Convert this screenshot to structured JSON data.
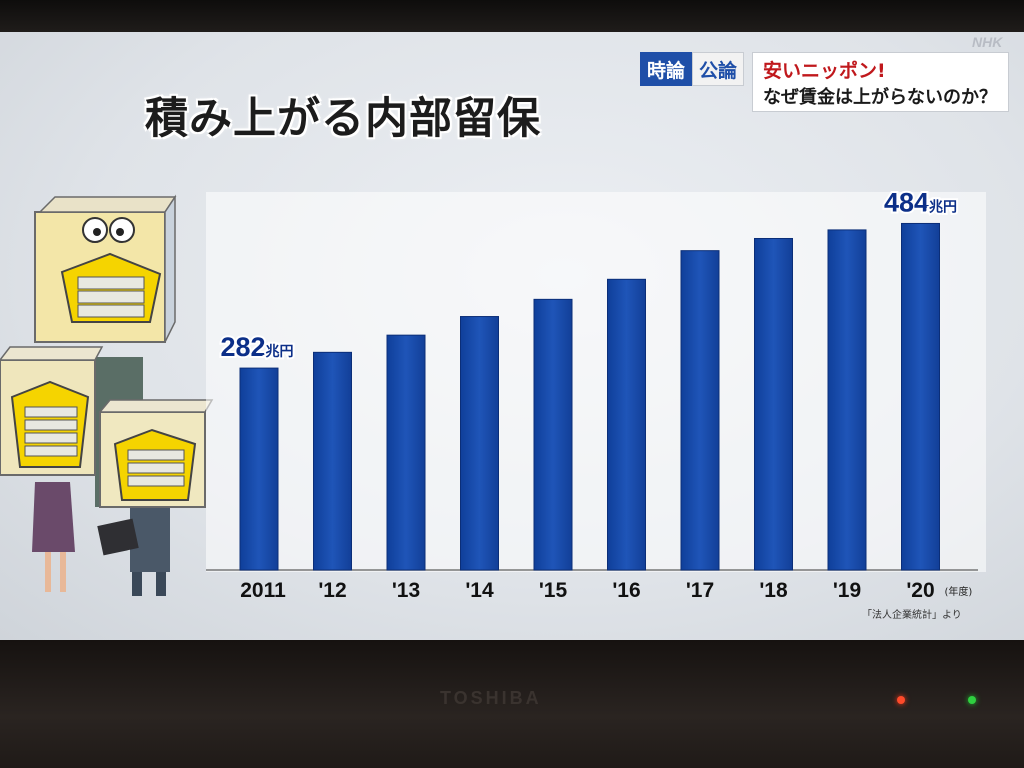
{
  "title": "積み上がる内部留保",
  "program": {
    "badge_left": "時論",
    "badge_right": "公論"
  },
  "topic": {
    "line1": "安いニッポン!",
    "line2": "なぜ賃金は上がらないのか？"
  },
  "broadcaster": "NHK",
  "source": "「法人企業統計」より",
  "tv_brand": "TOSHIBA",
  "chart_data": {
    "type": "bar",
    "title": "積み上がる内部留保",
    "categories": [
      "2011",
      "'12",
      "'13",
      "'14",
      "'15",
      "'16",
      "'17",
      "'18",
      "'19",
      "'20"
    ],
    "values": [
      282,
      304,
      328,
      354,
      378,
      406,
      446,
      463,
      475,
      484
    ],
    "unit": "兆円",
    "x_unit": "(年度)",
    "ylim": [
      0,
      520
    ],
    "labeled_points": [
      {
        "index": 0,
        "value": "282",
        "unit": "兆円"
      },
      {
        "index": 9,
        "value": "484",
        "unit": "兆円"
      }
    ],
    "bar_color": "#1f55b8",
    "grid": false,
    "legend": "none"
  }
}
